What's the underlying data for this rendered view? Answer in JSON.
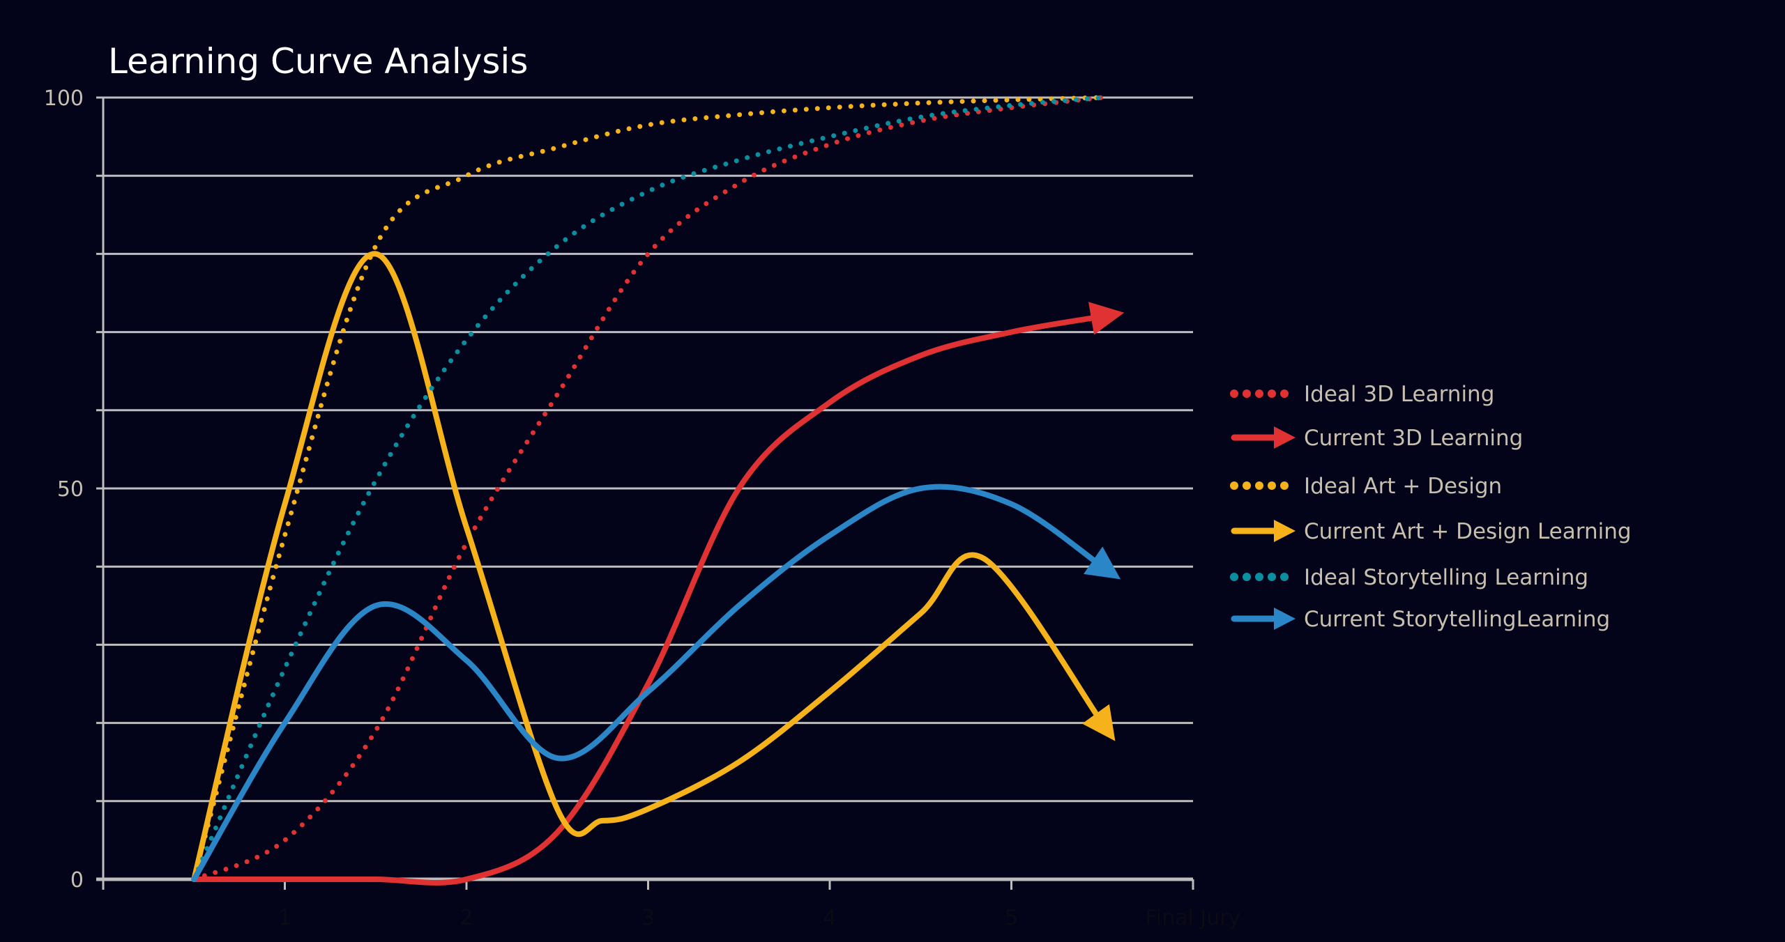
{
  "chart_data": {
    "type": "line",
    "title": "Learning Curve Analysis",
    "xlabel": "",
    "ylabel": "",
    "xlim": [
      0,
      6
    ],
    "ylim": [
      0,
      100
    ],
    "x_ticks": [
      1,
      2,
      3,
      4,
      5,
      6
    ],
    "x_tick_labels": [
      "1",
      "2",
      "3",
      "4",
      "5",
      "Final Jury"
    ],
    "y_tick_labels": [
      {
        "value": 0,
        "label": "0"
      },
      {
        "value": 50,
        "label": "50"
      },
      {
        "value": 100,
        "label": "100"
      }
    ],
    "grid": {
      "horizontal": true,
      "step": 10
    },
    "legend_position": "right",
    "series": [
      {
        "name": "Ideal 3D Learning",
        "style": "dotted",
        "color": "#e03232",
        "x": [
          0.5,
          1.0,
          1.5,
          2.0,
          2.5,
          3.0,
          3.5,
          4.0,
          4.5,
          5.0,
          5.5
        ],
        "y": [
          0,
          5,
          19,
          43,
          62,
          80,
          89,
          94,
          97,
          98.7,
          100
        ]
      },
      {
        "name": "Current 3D Learning",
        "style": "arrow",
        "color": "#e03232",
        "x": [
          0.5,
          1.0,
          1.5,
          2.0,
          2.5,
          3.0,
          3.5,
          4.0,
          4.5,
          5.0,
          5.5
        ],
        "y": [
          0,
          0,
          0,
          0,
          6,
          25,
          50,
          61,
          67,
          70,
          72
        ]
      },
      {
        "name": "Ideal Art + Design",
        "style": "dotted",
        "color": "#f6b21a",
        "x": [
          0.5,
          1.0,
          1.5,
          2.0,
          2.5,
          3.0,
          3.5,
          4.0,
          4.5,
          5.0,
          5.5
        ],
        "y": [
          0,
          44,
          81,
          90,
          93.6,
          96.5,
          97.8,
          98.7,
          99.3,
          99.7,
          100
        ]
      },
      {
        "name": "Current Art + Design Learning",
        "style": "arrow",
        "color": "#f6b21a",
        "x": [
          0.5,
          1.0,
          1.5,
          2.0,
          2.5,
          2.75,
          3.0,
          3.5,
          4.0,
          4.5,
          4.85,
          5.5
        ],
        "y": [
          0,
          48,
          80,
          45,
          9,
          7.5,
          9,
          15,
          24,
          34,
          41,
          20
        ]
      },
      {
        "name": "Ideal Storytelling Learning",
        "style": "dotted",
        "color": "#0a8fa0",
        "x": [
          0.5,
          1.0,
          1.5,
          2.0,
          2.5,
          3.0,
          3.5,
          4.0,
          4.5,
          5.0,
          5.5
        ],
        "y": [
          0,
          27,
          51,
          69,
          81,
          88,
          92,
          95,
          97.5,
          99,
          100
        ]
      },
      {
        "name": "Current StorytellingLearning",
        "style": "arrow",
        "color": "#2b86c8",
        "x": [
          0.5,
          1.0,
          1.5,
          2.0,
          2.5,
          3.0,
          3.5,
          4.0,
          4.5,
          5.0,
          5.5
        ],
        "y": [
          0,
          20,
          35,
          28,
          15.5,
          24,
          35,
          44,
          50,
          48,
          40
        ]
      }
    ]
  }
}
